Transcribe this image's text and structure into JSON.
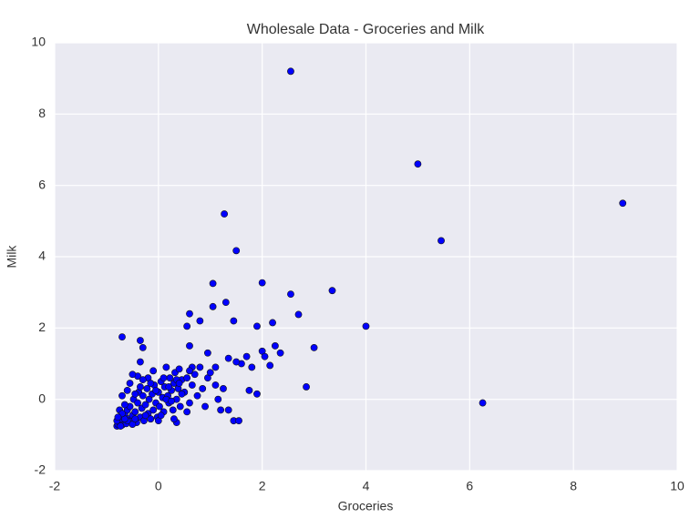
{
  "chart_data": {
    "type": "scatter",
    "title": "Wholesale Data - Groceries and Milk",
    "x_label": "Groceries",
    "y_label": "Milk",
    "color": "#0000ff",
    "grid": true,
    "xlim": [
      -2,
      10
    ],
    "ylim": [
      -2,
      10
    ],
    "xticks": [
      -2,
      0,
      2,
      4,
      6,
      8,
      10
    ],
    "yticks": [
      -2,
      0,
      2,
      4,
      6,
      8,
      10
    ],
    "x": [
      2.55,
      5.0,
      8.95,
      5.45,
      6.25,
      4.0,
      1.27,
      1.5,
      3.35,
      2.0,
      2.55,
      1.05,
      1.3,
      1.05,
      2.7,
      0.6,
      0.55,
      1.45,
      2.2,
      1.9,
      3.0,
      2.85,
      -0.7,
      -0.35,
      -0.3,
      2.0,
      2.05,
      2.35,
      2.25,
      2.15,
      1.9,
      1.75,
      1.45,
      1.55,
      1.2,
      1.35,
      0.8,
      0.6,
      0.95,
      1.35,
      1.1,
      1.6,
      1.7,
      1.5,
      1.8,
      0.35,
      -0.35,
      -0.8,
      -0.78,
      -0.75,
      -0.72,
      -0.7,
      -0.68,
      -0.65,
      -0.62,
      -0.6,
      -0.58,
      -0.55,
      -0.52,
      -0.5,
      -0.48,
      -0.45,
      -0.42,
      -0.4,
      -0.38,
      -0.35,
      -0.32,
      -0.3,
      -0.28,
      -0.25,
      -0.22,
      -0.2,
      -0.18,
      -0.15,
      -0.12,
      -0.1,
      -0.08,
      -0.05,
      -0.02,
      0.0,
      0.02,
      0.05,
      0.08,
      0.1,
      0.12,
      0.15,
      0.18,
      0.2,
      0.22,
      0.25,
      0.28,
      0.3,
      0.32,
      0.35,
      0.38,
      0.4,
      0.42,
      0.45,
      0.5,
      0.55,
      0.6,
      0.65,
      0.7,
      0.75,
      0.8,
      0.85,
      0.9,
      0.95,
      1.0,
      1.1,
      1.15,
      1.25,
      -0.75,
      -0.7,
      -0.65,
      -0.6,
      -0.55,
      -0.5,
      -0.45,
      -0.4,
      -0.35,
      -0.6,
      -0.5,
      -0.2,
      -0.1,
      0.0,
      0.1,
      0.05,
      0.2,
      0.3,
      0.45,
      0.55,
      0.65,
      -0.3,
      -0.15,
      -0.05,
      0.15,
      0.25,
      0.35,
      0.4,
      -0.25,
      -0.45,
      -0.65,
      -0.7,
      -0.8,
      -0.78,
      -0.73,
      0.6
    ],
    "values": [
      9.2,
      6.6,
      5.5,
      4.45,
      -0.1,
      2.05,
      5.2,
      4.17,
      3.05,
      3.27,
      2.95,
      3.25,
      2.72,
      2.6,
      2.38,
      2.4,
      2.05,
      2.2,
      2.15,
      2.05,
      1.45,
      0.35,
      1.75,
      1.65,
      1.45,
      1.35,
      1.2,
      1.3,
      1.5,
      0.95,
      0.15,
      0.25,
      -0.6,
      -0.6,
      -0.3,
      -0.3,
      2.2,
      1.5,
      1.3,
      1.15,
      0.9,
      1.0,
      1.2,
      1.05,
      0.9,
      -0.65,
      1.05,
      -0.75,
      -0.7,
      -0.65,
      -0.6,
      -0.72,
      -0.5,
      -0.4,
      -0.68,
      -0.3,
      -0.55,
      -0.2,
      -0.6,
      -0.45,
      0.0,
      -0.35,
      -0.65,
      -0.1,
      0.2,
      -0.5,
      -0.25,
      0.1,
      -0.6,
      -0.15,
      0.3,
      -0.4,
      0.0,
      -0.55,
      0.15,
      -0.3,
      0.4,
      -0.1,
      -0.5,
      0.2,
      -0.2,
      0.5,
      0.05,
      -0.35,
      0.35,
      0.9,
      0.1,
      -0.1,
      0.6,
      0.25,
      -0.3,
      0.45,
      0.75,
      0.0,
      0.3,
      0.85,
      -0.2,
      0.55,
      0.2,
      0.6,
      -0.1,
      0.4,
      0.7,
      0.1,
      0.9,
      0.3,
      -0.2,
      0.6,
      0.75,
      0.4,
      0.0,
      0.3,
      -0.3,
      0.1,
      -0.15,
      0.25,
      0.45,
      -0.7,
      0.15,
      0.65,
      0.35,
      -0.6,
      0.7,
      0.6,
      0.8,
      -0.6,
      0.6,
      -0.45,
      0.35,
      -0.55,
      0.15,
      -0.35,
      0.9,
      0.55,
      0.45,
      0.25,
      0.0,
      -0.05,
      0.55,
      0.45,
      -0.45,
      -0.55,
      -0.55,
      -0.4,
      -0.6,
      -0.5,
      -0.75,
      0.8
    ]
  }
}
